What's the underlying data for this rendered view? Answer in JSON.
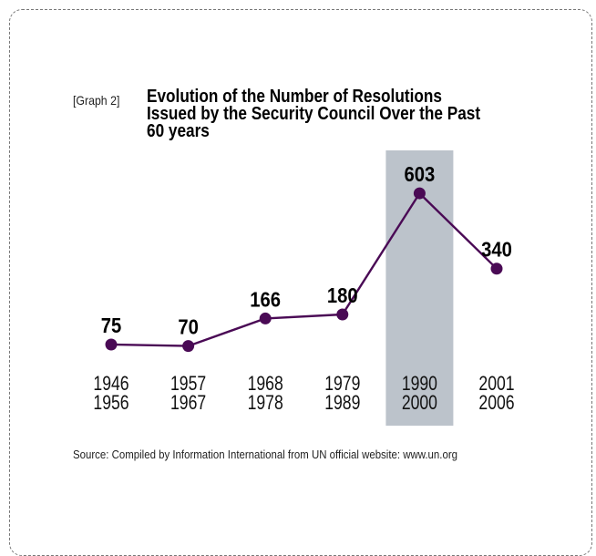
{
  "graph_tag": "[Graph 2]",
  "title": "Evolution of the Number of Resolutions Issued by the Security Council Over the Past 60 years",
  "source": "Source: Compiled by Information International from UN official website: www.un.org",
  "colors": {
    "line": "#4a0a55",
    "highlight_band": "#bcc3cb",
    "label": "#000000"
  },
  "chart_data": {
    "type": "line",
    "categories": [
      [
        "1946",
        "1956"
      ],
      [
        "1957",
        "1967"
      ],
      [
        "1968",
        "1978"
      ],
      [
        "1979",
        "1989"
      ],
      [
        "1990",
        "2000"
      ],
      [
        "2001",
        "2006"
      ]
    ],
    "values": [
      75,
      70,
      166,
      180,
      603,
      340
    ],
    "highlighted_category": [
      "1990",
      "2000"
    ],
    "grid": false
  }
}
